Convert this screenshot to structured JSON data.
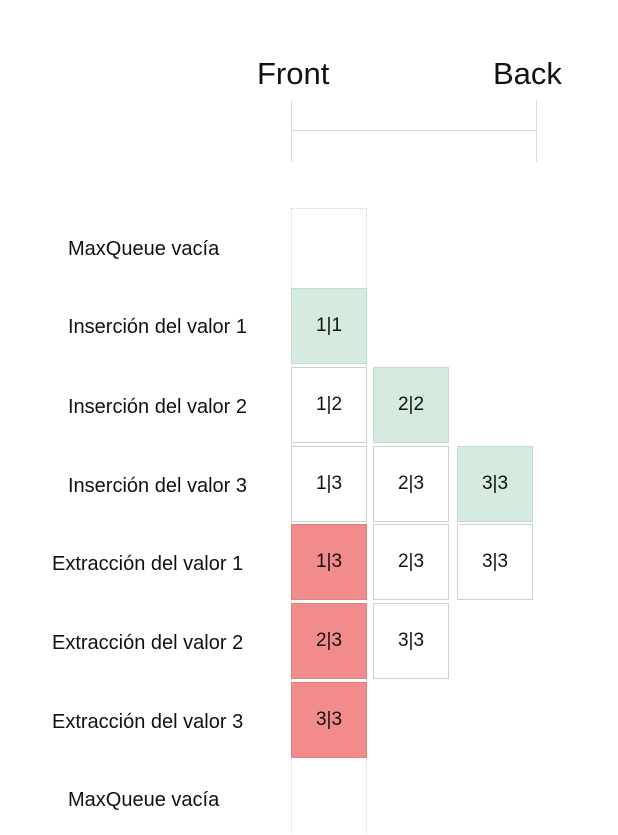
{
  "header": {
    "front": "Front",
    "back": "Back"
  },
  "rows": [
    {
      "label": "MaxQueue vacía",
      "cells": []
    },
    {
      "label": "Inserción del valor 1",
      "cells": [
        {
          "text": "1|1",
          "color": "#d5ebe0"
        }
      ]
    },
    {
      "label": "Inserción del valor 2",
      "cells": [
        {
          "text": "1|2",
          "color": "#ffffff"
        },
        {
          "text": "2|2",
          "color": "#d5ebe0"
        }
      ]
    },
    {
      "label": "Inserción del valor 3",
      "cells": [
        {
          "text": "1|3",
          "color": "#ffffff"
        },
        {
          "text": "2|3",
          "color": "#ffffff"
        },
        {
          "text": "3|3",
          "color": "#d5ebe0"
        }
      ]
    },
    {
      "label": "Extracción del valor 1",
      "cells": [
        {
          "text": "1|3",
          "color": "#f28c8c"
        },
        {
          "text": "2|3",
          "color": "#ffffff"
        },
        {
          "text": "3|3",
          "color": "#ffffff"
        }
      ]
    },
    {
      "label": "Extracción del valor 2",
      "cells": [
        {
          "text": "2|3",
          "color": "#f28c8c"
        },
        {
          "text": "3|3",
          "color": "#ffffff"
        }
      ]
    },
    {
      "label": "Extracción del valor 3",
      "cells": [
        {
          "text": "3|3",
          "color": "#f28c8c"
        }
      ]
    },
    {
      "label": "MaxQueue vacía",
      "cells": []
    }
  ]
}
